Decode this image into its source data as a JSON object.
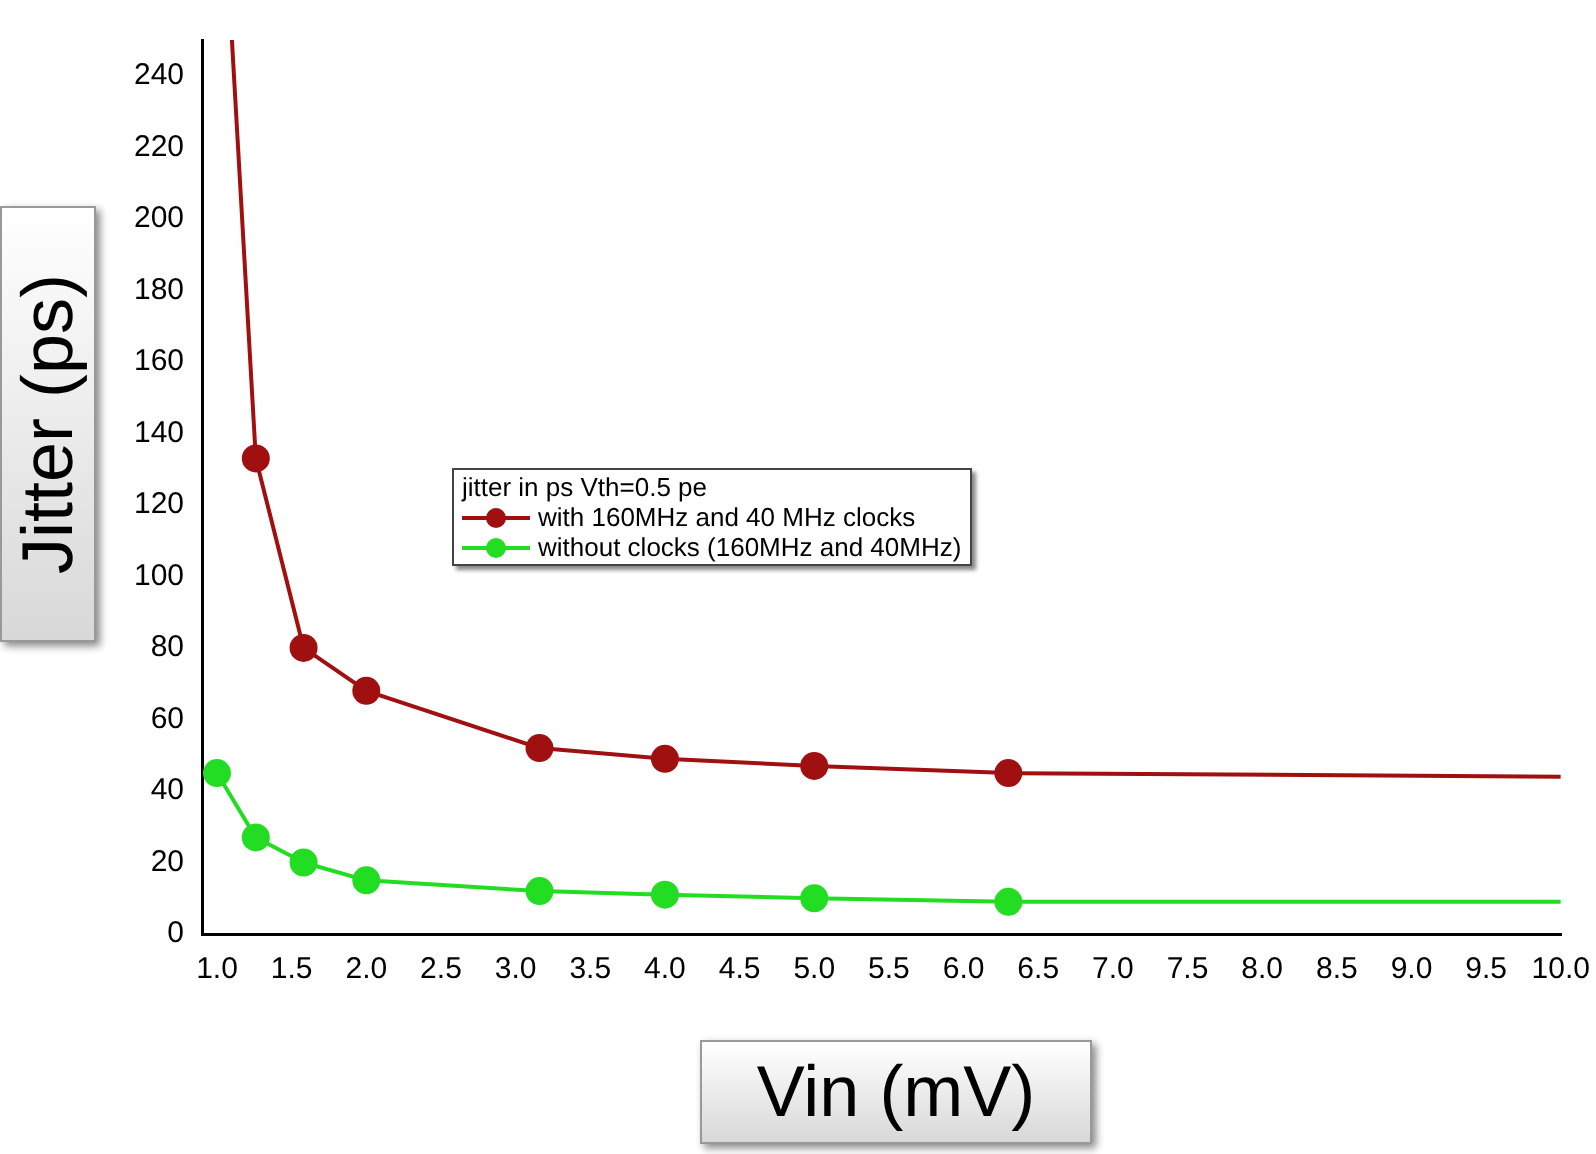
{
  "chart_data": {
    "type": "line",
    "xlabel": "Vin (mV)",
    "ylabel": "Jitter (ps)",
    "legend_title": "jitter in ps Vth=0.5 pe",
    "legend": "center",
    "marker": "circle",
    "line_style": "solid",
    "grid": false,
    "xlim": [
      0.9,
      10.0
    ],
    "ylim": [
      0,
      250
    ],
    "xticks": [
      {
        "value": 1,
        "label": "1.0"
      },
      {
        "value": 1.5,
        "label": "1.5"
      },
      {
        "value": 2,
        "label": "2.0"
      },
      {
        "value": 2.5,
        "label": "2.5"
      },
      {
        "value": 3,
        "label": "3.0"
      },
      {
        "value": 3.5,
        "label": "3.5"
      },
      {
        "value": 4,
        "label": "4.0"
      },
      {
        "value": 4.5,
        "label": "4.5"
      },
      {
        "value": 5,
        "label": "5.0"
      },
      {
        "value": 5.5,
        "label": "5.5"
      },
      {
        "value": 6,
        "label": "6.0"
      },
      {
        "value": 6.5,
        "label": "6.5"
      },
      {
        "value": 7,
        "label": "7.0"
      },
      {
        "value": 7.5,
        "label": "7.5"
      },
      {
        "value": 8,
        "label": "8.0"
      },
      {
        "value": 8.5,
        "label": "8.5"
      },
      {
        "value": 9,
        "label": "9.0"
      },
      {
        "value": 9.5,
        "label": "9.5"
      },
      {
        "value": 10,
        "label": "10.0"
      }
    ],
    "yticks": [
      0,
      20,
      40,
      60,
      80,
      100,
      120,
      140,
      160,
      180,
      200,
      220,
      240
    ],
    "series": [
      {
        "name": "with 160MHz and 40 MHz clocks",
        "color": "#a01010",
        "x": [
          1.1,
          1.26,
          1.58,
          2.0,
          3.16,
          4.0,
          5.0,
          6.3,
          10.0
        ],
        "values": [
          250,
          133,
          80,
          68,
          52,
          49,
          47,
          45,
          44
        ]
      },
      {
        "name": "without clocks (160MHz and 40MHz)",
        "color": "#22dd22",
        "x": [
          1.0,
          1.26,
          1.58,
          2.0,
          3.16,
          4.0,
          5.0,
          6.3,
          10.0
        ],
        "values": [
          45,
          27,
          20,
          15,
          12,
          11,
          10,
          9,
          9
        ]
      }
    ]
  }
}
